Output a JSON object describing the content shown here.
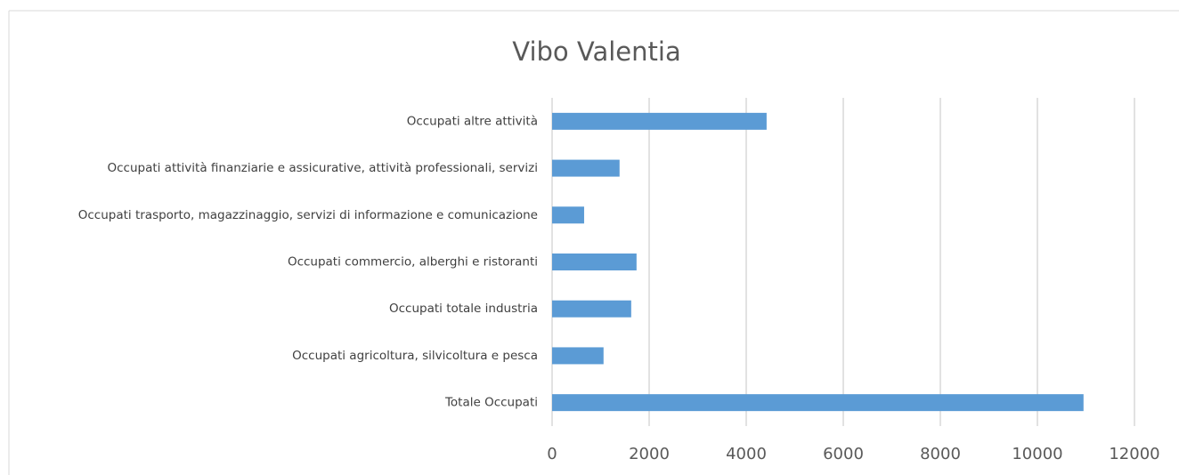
{
  "chart_data": {
    "type": "bar",
    "orientation": "horizontal",
    "title": "Vibo Valentia",
    "categories": [
      "Occupati altre attività",
      "Occupati attività finanziarie e assicurative, attività professionali, servizi",
      "Occupati trasporto, magazzinaggio, servizi di informazione e comunicazione",
      "Occupati commercio, alberghi e ristoranti",
      "Occupati totale industria",
      "Occupati agricoltura, silvicoltura e pesca",
      "Totale Occupati"
    ],
    "values": [
      4420,
      1390,
      660,
      1740,
      1630,
      1060,
      10950
    ],
    "color": "#5b9bd5",
    "xlim": [
      0,
      12000
    ],
    "xticks": [
      0,
      2000,
      4000,
      6000,
      8000,
      10000,
      12000
    ],
    "grid": true
  }
}
